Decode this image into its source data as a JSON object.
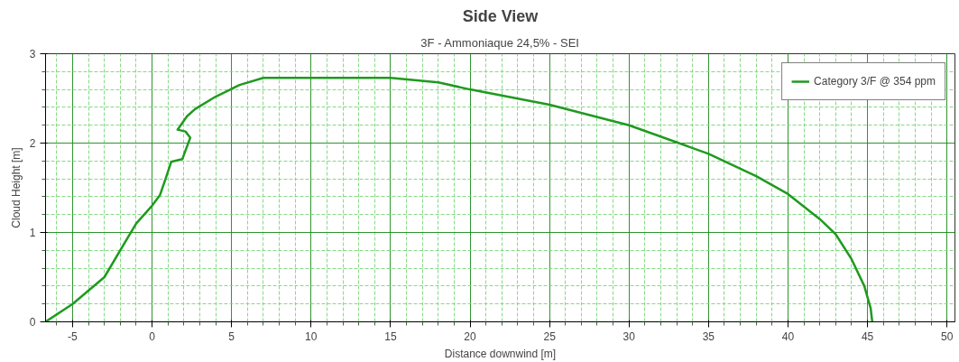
{
  "chart_data": {
    "type": "line",
    "title": "Side View",
    "subtitle": "3F - Ammoniaque 24,5% - SEI",
    "xlabel": "Distance downwind [m]",
    "ylabel": "Cloud Height [m]",
    "xlim": [
      -6.7,
      50.5
    ],
    "ylim": [
      0,
      3
    ],
    "xticks": [
      {
        "value": -6,
        "label": null
      },
      -5,
      {
        "value": -4,
        "label": null
      },
      {
        "value": -3,
        "label": null
      },
      {
        "value": -2,
        "label": null
      },
      {
        "value": -1,
        "label": null
      },
      0,
      {
        "value": 1,
        "label": null
      },
      {
        "value": 2,
        "label": null
      },
      {
        "value": 3,
        "label": null
      },
      {
        "value": 4,
        "label": null
      },
      5,
      {
        "value": 6,
        "label": null
      },
      {
        "value": 7,
        "label": null
      },
      {
        "value": 8,
        "label": null
      },
      {
        "value": 9,
        "label": null
      },
      10,
      {
        "value": 11,
        "label": null
      },
      {
        "value": 12,
        "label": null
      },
      {
        "value": 13,
        "label": null
      },
      {
        "value": 14,
        "label": null
      },
      15,
      {
        "value": 16,
        "label": null
      },
      {
        "value": 17,
        "label": null
      },
      {
        "value": 18,
        "label": null
      },
      {
        "value": 19,
        "label": null
      },
      20,
      {
        "value": 21,
        "label": null
      },
      {
        "value": 22,
        "label": null
      },
      {
        "value": 23,
        "label": null
      },
      {
        "value": 24,
        "label": null
      },
      25,
      {
        "value": 26,
        "label": null
      },
      {
        "value": 27,
        "label": null
      },
      {
        "value": 28,
        "label": null
      },
      {
        "value": 29,
        "label": null
      },
      30,
      {
        "value": 31,
        "label": null
      },
      {
        "value": 32,
        "label": null
      },
      {
        "value": 33,
        "label": null
      },
      {
        "value": 34,
        "label": null
      },
      35,
      {
        "value": 36,
        "label": null
      },
      {
        "value": 37,
        "label": null
      },
      {
        "value": 38,
        "label": null
      },
      {
        "value": 39,
        "label": null
      },
      40,
      {
        "value": 41,
        "label": null
      },
      {
        "value": 42,
        "label": null
      },
      {
        "value": 43,
        "label": null
      },
      {
        "value": 44,
        "label": null
      },
      45,
      {
        "value": 46,
        "label": null
      },
      {
        "value": 47,
        "label": null
      },
      {
        "value": 48,
        "label": null
      },
      {
        "value": 49,
        "label": null
      },
      50
    ],
    "yticks": [
      0,
      {
        "value": 0.2,
        "label": null
      },
      {
        "value": 0.4,
        "label": null
      },
      {
        "value": 0.6,
        "label": null
      },
      {
        "value": 0.8,
        "label": null
      },
      1,
      {
        "value": 1.2,
        "label": null
      },
      {
        "value": 1.4,
        "label": null
      },
      {
        "value": 1.6,
        "label": null
      },
      {
        "value": 1.8,
        "label": null
      },
      2,
      {
        "value": 2.2,
        "label": null
      },
      {
        "value": 2.4,
        "label": null
      },
      {
        "value": 2.6,
        "label": null
      },
      {
        "value": 2.8,
        "label": null
      },
      3
    ],
    "grid": true,
    "legend": "top right",
    "line_style": "solid",
    "marker": "none",
    "series": [
      {
        "name": "Category 3/F @ 354 ppm",
        "color": "#1f9a1f",
        "x": [
          -6.7,
          -5,
          -3,
          -1.5,
          -1,
          0,
          0.5,
          0.85,
          1.2,
          1.9,
          2.4,
          2.1,
          1.6,
          2.2,
          2.7,
          4,
          5.5,
          7,
          15,
          18,
          20,
          25,
          30,
          35,
          38,
          40,
          42,
          43,
          44,
          44.8,
          45.2,
          45.3
        ],
        "values": [
          0,
          0.2,
          0.5,
          0.95,
          1.1,
          1.3,
          1.42,
          1.6,
          1.79,
          1.82,
          2.06,
          2.13,
          2.15,
          2.3,
          2.38,
          2.52,
          2.65,
          2.73,
          2.73,
          2.68,
          2.6,
          2.43,
          2.2,
          1.88,
          1.63,
          1.43,
          1.15,
          0.98,
          0.7,
          0.4,
          0.15,
          0
        ]
      }
    ]
  }
}
